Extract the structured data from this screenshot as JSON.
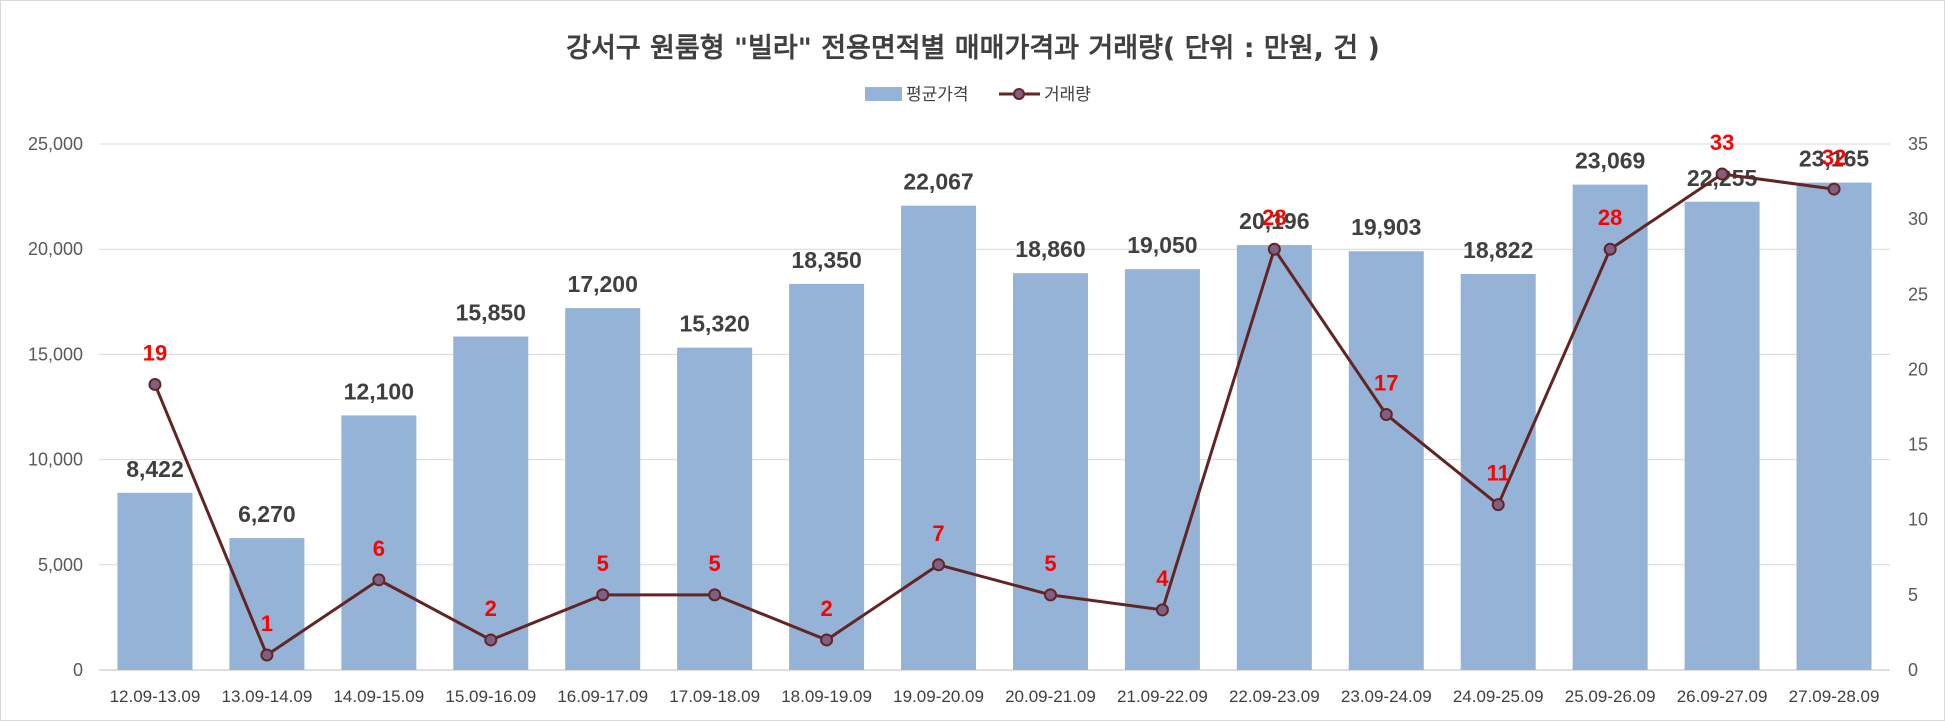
{
  "chart_data": {
    "type": "bar",
    "title": "강서구 원룸형 \"빌라\" 전용면적별 매매가격과 거래량( 단위 : 만원, 건 )",
    "xlabel": "",
    "ylabel": "",
    "categories": [
      "12.09-13.09",
      "13.09-14.09",
      "14.09-15.09",
      "15.09-16.09",
      "16.09-17.09",
      "17.09-18.09",
      "18.09-19.09",
      "19.09-20.09",
      "20.09-21.09",
      "21.09-22.09",
      "22.09-23.09",
      "23.09-24.09",
      "24.09-25.09",
      "25.09-26.09",
      "26.09-27.09",
      "27.09-28.09"
    ],
    "series": [
      {
        "name": "평균가격",
        "type": "bar",
        "axis": "left",
        "color": "#95B3D7",
        "values": [
          8422,
          6270,
          12100,
          15850,
          17200,
          15320,
          18350,
          22067,
          18860,
          19050,
          20196,
          19903,
          18822,
          23069,
          22255,
          23165
        ],
        "labels": [
          "8,422",
          "6,270",
          "12,100",
          "15,850",
          "17,200",
          "15,320",
          "18,350",
          "22,067",
          "18,860",
          "19,050",
          "20,196",
          "19,903",
          "18,822",
          "23,069",
          "22,255",
          "23,165"
        ]
      },
      {
        "name": "거래량",
        "type": "line",
        "axis": "right",
        "color": "#632523",
        "marker_fill": "#7F6084",
        "label_color": "#FF0000",
        "values": [
          19,
          1,
          6,
          2,
          5,
          5,
          2,
          7,
          5,
          4,
          28,
          17,
          11,
          28,
          33,
          32
        ],
        "labels": [
          "19",
          "1",
          "6",
          "2",
          "5",
          "5",
          "2",
          "7",
          "5",
          "4",
          "28",
          "17",
          "11",
          "28",
          "33",
          "32"
        ]
      }
    ],
    "ylim": [
      0,
      25000
    ],
    "y_ticks": [
      0,
      5000,
      10000,
      15000,
      20000,
      25000
    ],
    "y_tick_labels": [
      "0",
      "5,000",
      "10,000",
      "15,000",
      "20,000",
      "25,000"
    ],
    "y2lim": [
      0,
      35
    ],
    "y2_ticks": [
      0,
      5,
      10,
      15,
      20,
      25,
      30,
      35
    ],
    "y2_tick_labels": [
      "0",
      "5",
      "10",
      "15",
      "20",
      "25",
      "30",
      "35"
    ],
    "grid": true,
    "legend": "top-center"
  }
}
